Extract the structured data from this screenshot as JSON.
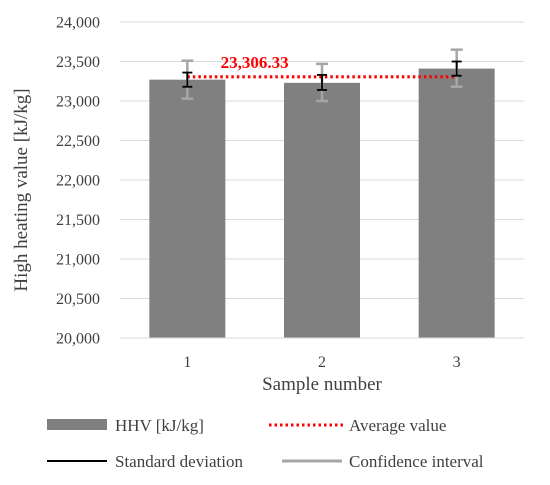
{
  "chart_data": {
    "type": "bar",
    "title": "",
    "categories": [
      "1",
      "2",
      "3"
    ],
    "xlabel": "Sample number",
    "ylabel": "High heating value [kJ/kg]",
    "ylim": [
      20000,
      24000
    ],
    "yticks": [
      20000,
      20500,
      21000,
      21500,
      22000,
      22500,
      23000,
      23500,
      24000
    ],
    "ytick_labels": [
      "20,000",
      "20,500",
      "21,000",
      "21,500",
      "22,000",
      "22,500",
      "23,000",
      "23,500",
      "24,000"
    ],
    "grid": true,
    "legend_position": "bottom",
    "series": [
      {
        "name": "HHV [kJ/kg]",
        "values": [
          23270,
          23230,
          23410
        ],
        "color": "#808080"
      }
    ],
    "standard_deviation": {
      "name": "Standard deviation",
      "low": [
        23180,
        23140,
        23320
      ],
      "high": [
        23360,
        23330,
        23500
      ],
      "color": "#000000"
    },
    "confidence_interval": {
      "name": "Confidence interval",
      "low": [
        23030,
        23000,
        23180
      ],
      "high": [
        23510,
        23470,
        23650
      ],
      "color": "#a6a6a6"
    },
    "average": {
      "name": "Average value",
      "value": 23306.33,
      "label": "23,306.33",
      "color": "#ff0000"
    }
  }
}
